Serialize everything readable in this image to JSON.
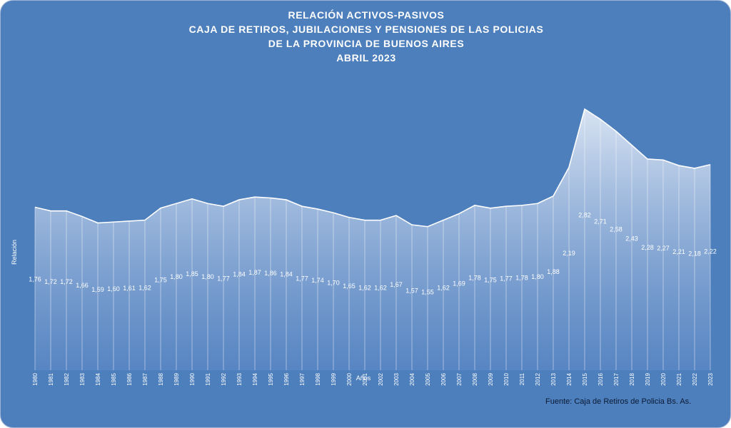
{
  "chart_data": {
    "type": "area",
    "title": [
      "RELACIÓN ACTIVOS-PASIVOS",
      "CAJA DE RETIROS, JUBILACIONES Y PENSIONES DE LAS POLICIAS",
      "DE LA PROVINCIA DE BUENOS AIRES",
      "ABRIL 2023"
    ],
    "xlabel": "Años",
    "ylabel": "Relación",
    "source": "Fuente: Caja de Retiros de Policia Bs. As.",
    "grid": false,
    "legend": "none",
    "x": [
      "1980",
      "1981",
      "1982",
      "1983",
      "1984",
      "1985",
      "1986",
      "1987",
      "1988",
      "1989",
      "1990",
      "1991",
      "1992",
      "1993",
      "1994",
      "1995",
      "1996",
      "1997",
      "1998",
      "1999",
      "2000",
      "2001",
      "2002",
      "2003",
      "2004",
      "2005",
      "2006",
      "2007",
      "2008",
      "2009",
      "2010",
      "2011",
      "2012",
      "2013",
      "2014",
      "2015",
      "2016",
      "2017",
      "2018",
      "2019",
      "2020",
      "2021",
      "2022",
      "2023"
    ],
    "values": [
      1.76,
      1.72,
      1.72,
      1.66,
      1.59,
      1.6,
      1.61,
      1.62,
      1.75,
      1.8,
      1.85,
      1.8,
      1.77,
      1.84,
      1.87,
      1.86,
      1.84,
      1.77,
      1.74,
      1.7,
      1.65,
      1.62,
      1.62,
      1.67,
      1.57,
      1.55,
      1.62,
      1.69,
      1.78,
      1.75,
      1.77,
      1.78,
      1.8,
      1.88,
      2.19,
      2.82,
      2.71,
      2.58,
      2.43,
      2.28,
      2.27,
      2.21,
      2.18,
      2.22
    ],
    "data_labels": [
      "1,76",
      "1,72",
      "1,72",
      "1,66",
      "1,59",
      "1,60",
      "1,61",
      "1,62",
      "1,75",
      "1,80",
      "1,85",
      "1,80",
      "1,77",
      "1,84",
      "1,87",
      "1,86",
      "1,84",
      "1,77",
      "1,74",
      "1,70",
      "1,65",
      "1,62",
      "1,62",
      "1,67",
      "1,57",
      "1,55",
      "1,62",
      "1,69",
      "1,78",
      "1,75",
      "1,77",
      "1,78",
      "1,80",
      "1,88",
      "2,19",
      "2,82",
      "2,71",
      "2,58",
      "2,43",
      "2,28",
      "2,27",
      "2,21",
      "2,18",
      "2,22"
    ],
    "ylim": [
      0,
      3.25
    ],
    "colors": {
      "background": "#4d7fbd",
      "area_top": "#dfe8f5",
      "area_bottom": "#5f8ac6",
      "line": "#ffffff",
      "text": "#ffffff",
      "source_text": "#0b1a33"
    }
  }
}
